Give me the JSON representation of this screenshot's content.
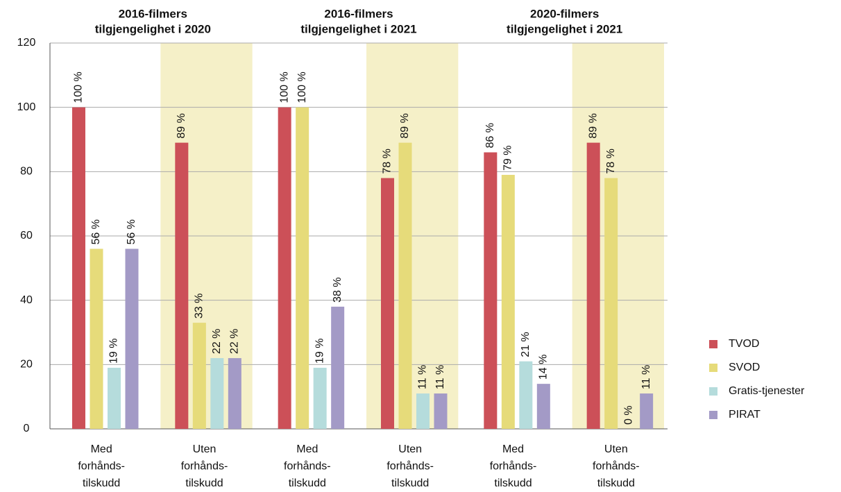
{
  "chart_data": {
    "type": "bar",
    "group_titles": [
      [
        "2016-filmers",
        "tilgjengelighet i 2020"
      ],
      [
        "2016-filmers",
        "tilgjengelighet i 2021"
      ],
      [
        "2020-filmers",
        "tilgjengelighet i 2021"
      ]
    ],
    "categories": [
      [
        "Med",
        "forhånds-",
        "tilskudd"
      ],
      [
        "Uten",
        "forhånds-",
        "tilskudd"
      ],
      [
        "Med",
        "forhånds-",
        "tilskudd"
      ],
      [
        "Uten",
        "forhånds-",
        "tilskudd"
      ],
      [
        "Med",
        "forhånds-",
        "tilskudd"
      ],
      [
        "Uten",
        "forhånds-",
        "tilskudd"
      ]
    ],
    "series": [
      {
        "name": "TVOD",
        "color": "#cc5058",
        "values": [
          100,
          89,
          100,
          78,
          86,
          89
        ],
        "value_labels": [
          "100 %",
          "89 %",
          "100 %",
          "78 %",
          "86 %",
          "89 %"
        ]
      },
      {
        "name": "SVOD",
        "color": "#e6db7a",
        "values": [
          56,
          33,
          100,
          89,
          79,
          78
        ],
        "value_labels": [
          "56 %",
          "33 %",
          "100 %",
          "89 %",
          "79 %",
          "78 %"
        ]
      },
      {
        "name": "Gratis-tjenester",
        "color": "#b5dcdc",
        "values": [
          19,
          22,
          19,
          11,
          21,
          0
        ],
        "value_labels": [
          "19 %",
          "22 %",
          "19 %",
          "11 %",
          "21 %",
          "0 %"
        ]
      },
      {
        "name": "PIRAT",
        "color": "#a39ac6",
        "values": [
          56,
          22,
          38,
          11,
          14,
          11
        ],
        "value_labels": [
          "56 %",
          "22 %",
          "38 %",
          "11 %",
          "14 %",
          "11 %"
        ]
      }
    ],
    "ylim": [
      0,
      120
    ],
    "yticks": [
      0,
      20,
      40,
      60,
      80,
      100,
      120
    ],
    "grid": true,
    "legend": "right"
  }
}
